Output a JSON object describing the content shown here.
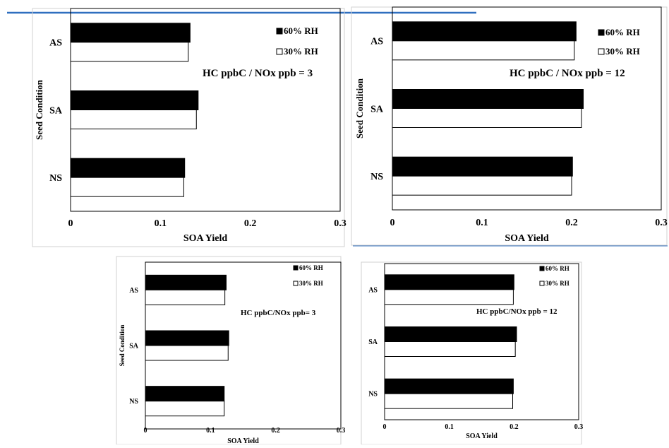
{
  "colors": {
    "bar_60": "#000000",
    "bar_30": "#ffffff",
    "divider": "#2f6fbf"
  },
  "chart_data": [
    {
      "type": "bar",
      "orientation": "horizontal",
      "categories": [
        "AS",
        "SA",
        "NS"
      ],
      "series": [
        {
          "name": "60% RH",
          "values": [
            0.133,
            0.142,
            0.127
          ]
        },
        {
          "name": "30% RH",
          "values": [
            0.131,
            0.14,
            0.126
          ]
        }
      ],
      "xlabel": "SOA Yield",
      "ylabel": "Seed Condition",
      "annotation": "HC ppbC / NOx ppb = 3",
      "xlim": [
        0,
        0.3
      ],
      "xticks": [
        "0",
        "0.1",
        "0.2",
        "0.3"
      ],
      "legend_position": "top-right"
    },
    {
      "type": "bar",
      "orientation": "horizontal",
      "categories": [
        "AS",
        "SA",
        "NS"
      ],
      "series": [
        {
          "name": "60% RH",
          "values": [
            0.205,
            0.213,
            0.201
          ]
        },
        {
          "name": "30% RH",
          "values": [
            0.203,
            0.211,
            0.2
          ]
        }
      ],
      "xlabel": "SOA Yield",
      "ylabel": "Seed Condition",
      "annotation": "HC ppbC / NOx ppb = 12",
      "xlim": [
        0,
        0.3
      ],
      "xticks": [
        "0",
        "0.1",
        "0.2",
        "0.3"
      ],
      "legend_position": "top-right"
    },
    {
      "type": "bar",
      "orientation": "horizontal",
      "categories": [
        "AS",
        "SA",
        "NS"
      ],
      "series": [
        {
          "name": "60% RH",
          "values": [
            0.124,
            0.128,
            0.121
          ]
        },
        {
          "name": "30% RH",
          "values": [
            0.122,
            0.127,
            0.121
          ]
        }
      ],
      "xlabel": "SOA Yield",
      "ylabel": "Seed Condition",
      "annotation": "HC ppbC/NOx ppb= 3",
      "xlim": [
        0,
        0.3
      ],
      "xticks": [
        "0",
        "0.1",
        "0.2",
        "0.3"
      ],
      "legend_position": "top-right"
    },
    {
      "type": "bar",
      "orientation": "horizontal",
      "categories": [
        "AS",
        "SA",
        "NS"
      ],
      "series": [
        {
          "name": "60% RH",
          "values": [
            0.2,
            0.204,
            0.199
          ]
        },
        {
          "name": "30% RH",
          "values": [
            0.199,
            0.202,
            0.198
          ]
        }
      ],
      "xlabel": "SOA Yield",
      "ylabel": "",
      "annotation": "HC ppbC/NOx ppb = 12",
      "xlim": [
        0,
        0.3
      ],
      "xticks": [
        "0",
        "0.1",
        "0.2",
        "0.3"
      ],
      "legend_position": "top-right"
    }
  ]
}
